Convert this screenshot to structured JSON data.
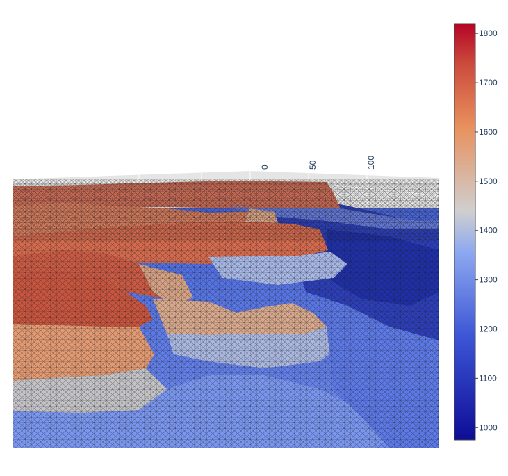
{
  "chart_data": {
    "type": "surface-3d-mesh",
    "title": "",
    "scene": {
      "x_tick_labels": [
        "0",
        "50",
        "100"
      ],
      "background": "#e5e5e5",
      "grid": true
    },
    "colorbar": {
      "colorscale": "coolwarm",
      "range": [
        975,
        1820
      ],
      "tick_values": [
        1000,
        1100,
        1200,
        1300,
        1400,
        1500,
        1600,
        1700,
        1800
      ],
      "tick_labels": [
        "1000",
        "1100",
        "1200",
        "1300",
        "1400",
        "1500",
        "1600",
        "1700",
        "1800"
      ],
      "placement": "right"
    },
    "colors": {
      "low": "#0d0d96",
      "mid_low": "#6f8ff0",
      "mid": "#c9c9c9",
      "mid_high": "#e89060",
      "high": "#b40426",
      "wire": "#1a1a1a"
    }
  }
}
